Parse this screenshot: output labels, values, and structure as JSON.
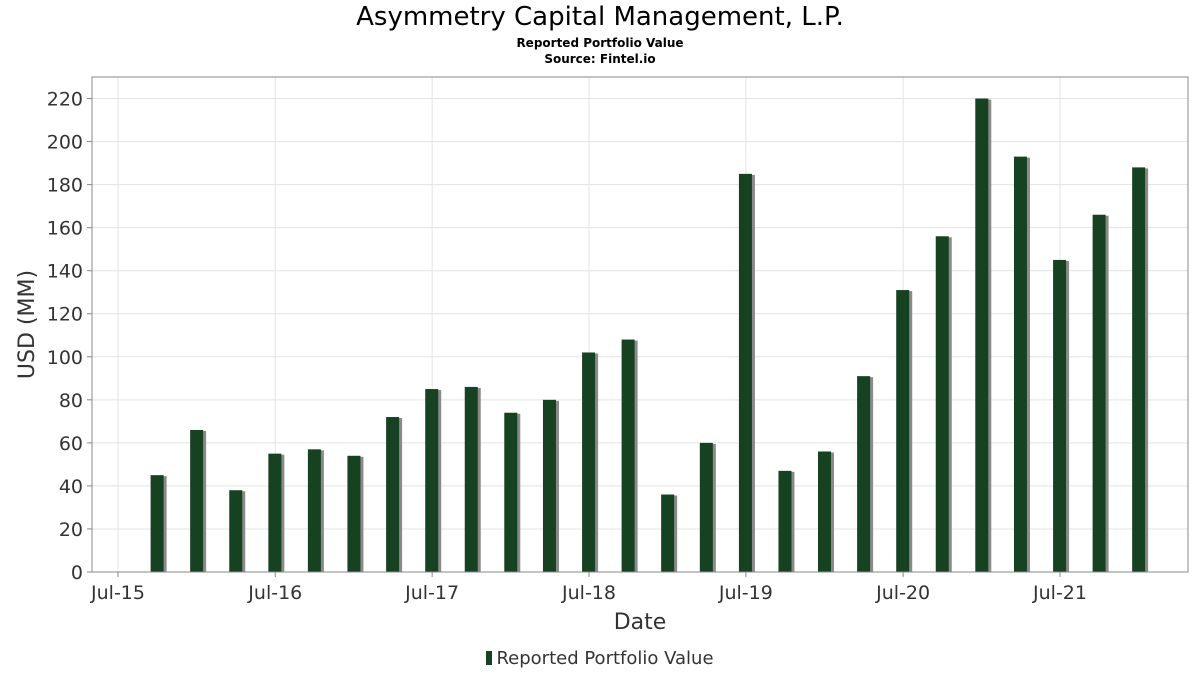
{
  "chart_data": {
    "type": "bar",
    "title": "Asymmetry Capital Management, L.P.",
    "subtitle": "Reported Portfolio Value",
    "source": "Source: Fintel.io",
    "xlabel": "Date",
    "ylabel": "USD (MM)",
    "ylim": [
      0,
      230
    ],
    "yticks": [
      0,
      20,
      40,
      60,
      80,
      100,
      120,
      140,
      160,
      180,
      200,
      220
    ],
    "xticks": [
      "Jul-15",
      "Jul-16",
      "Jul-17",
      "Jul-18",
      "Jul-19",
      "Jul-20",
      "Jul-21"
    ],
    "grid": true,
    "legend_position": "bottom",
    "series": [
      {
        "name": "Reported Portfolio Value",
        "color": "#174222",
        "x": [
          "2015-09-30",
          "2015-12-31",
          "2016-03-31",
          "2016-06-30",
          "2016-09-30",
          "2016-12-31",
          "2017-03-31",
          "2017-06-30",
          "2017-09-30",
          "2017-12-31",
          "2018-03-31",
          "2018-06-30",
          "2018-09-30",
          "2018-12-31",
          "2019-03-31",
          "2019-06-30",
          "2019-09-30",
          "2019-12-31",
          "2020-03-31",
          "2020-06-30",
          "2020-09-30",
          "2020-12-31",
          "2021-03-31",
          "2021-06-30",
          "2021-09-30",
          "2021-12-31"
        ],
        "values": [
          45,
          66,
          38,
          55,
          57,
          54,
          72,
          85,
          86,
          74,
          80,
          102,
          108,
          36,
          60,
          185,
          47,
          56,
          91,
          131,
          156,
          220,
          193,
          145,
          166,
          188
        ]
      }
    ]
  }
}
